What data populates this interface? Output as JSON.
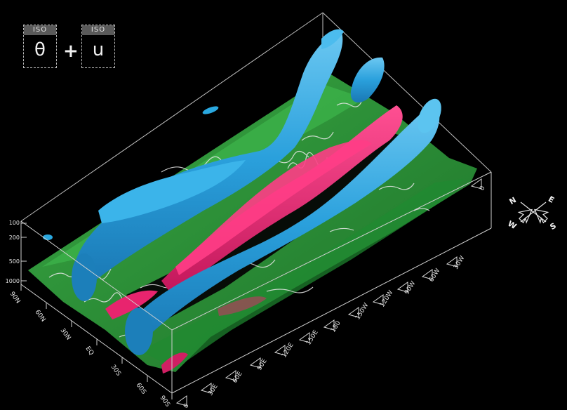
{
  "legend": {
    "tag_left": "ISO",
    "var_left": "θ",
    "operator": "+",
    "tag_right": "ISO",
    "var_right": "u"
  },
  "axes": {
    "pressure_ticks": [
      "100",
      "200",
      "500",
      "1000"
    ],
    "latitude_ticks": [
      "90N",
      "60N",
      "30N",
      "EQ",
      "30S",
      "60S",
      "90S"
    ],
    "longitude_ticks": [
      "0",
      "30E",
      "60E",
      "90E",
      "120E",
      "150E",
      "180",
      "150W",
      "120W",
      "90W",
      "60W",
      "30W",
      "0"
    ]
  },
  "compass": {
    "n": "N",
    "e": "E",
    "s": "S",
    "w": "W"
  },
  "colors": {
    "background": "#000000",
    "theta_surface": "#2f9e3a",
    "u_positive": "#2aa8e0",
    "u_negative": "#e8246e",
    "box_lines": "#d0d0d0",
    "coastline": "#e8e8e8"
  }
}
